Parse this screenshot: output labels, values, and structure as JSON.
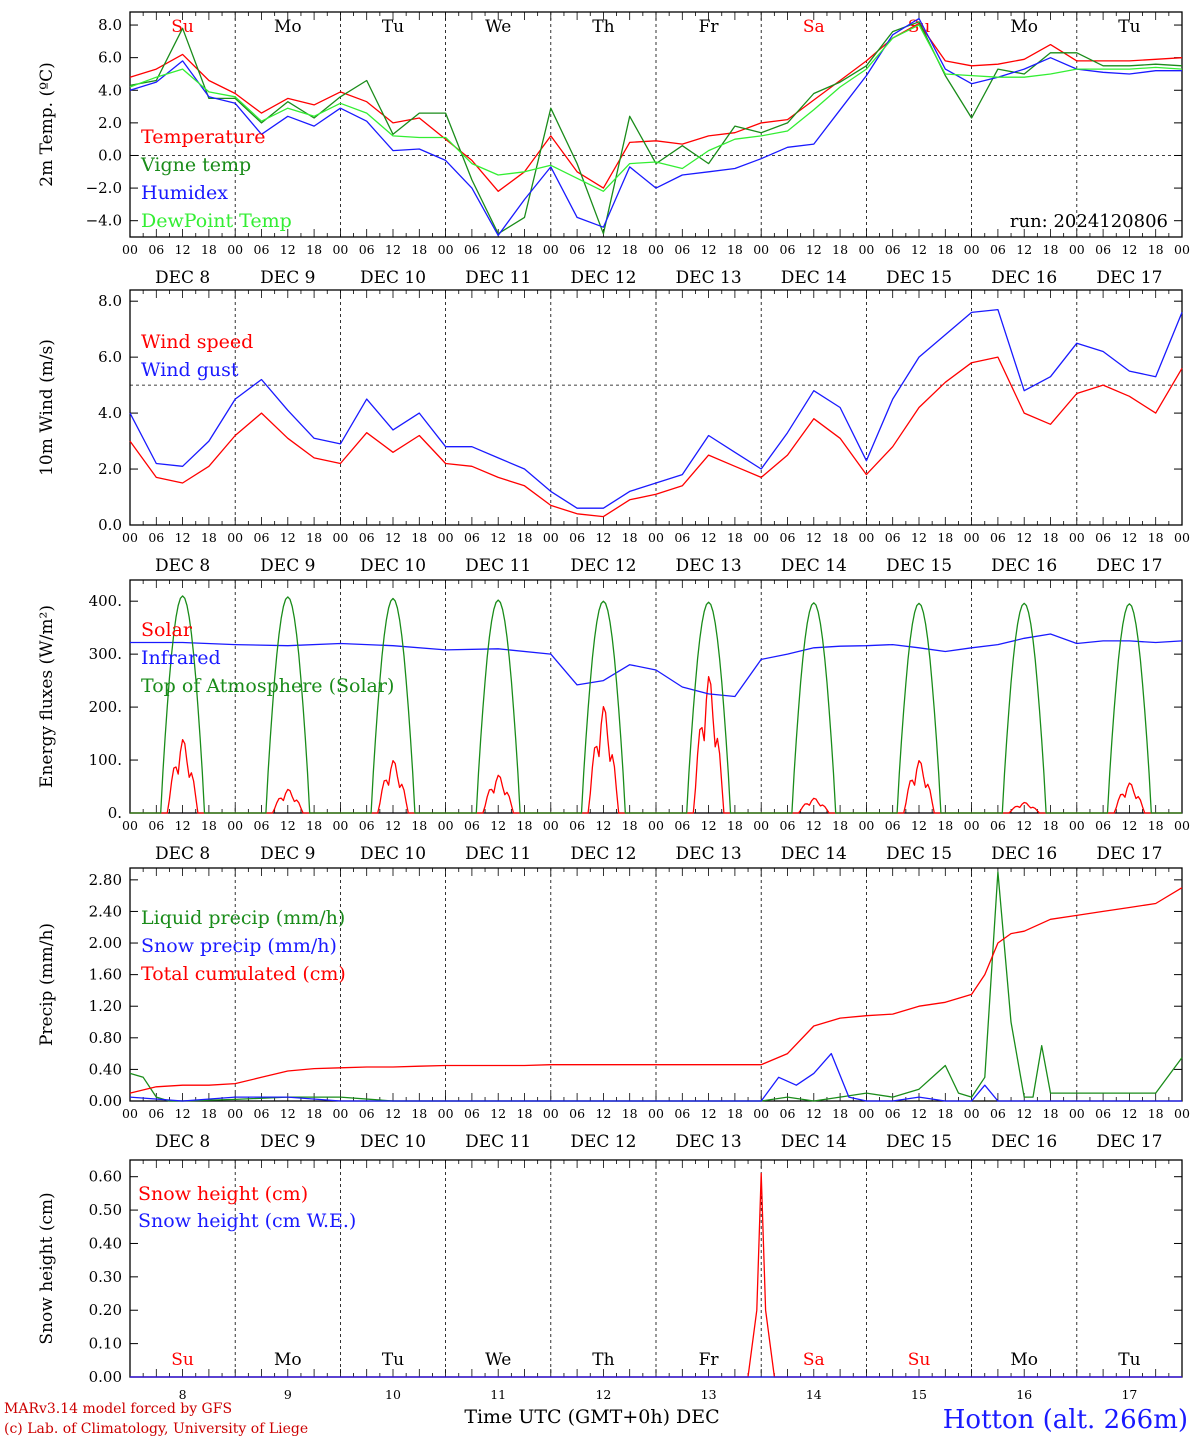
{
  "colors": {
    "red": "#ff0000",
    "green": "#1a8c1a",
    "blue": "#1a1aff",
    "light_green": "#33ee33",
    "black": "#000000"
  },
  "hour_ticks": [
    "00",
    "06",
    "12",
    "18"
  ],
  "day_names": [
    "Su",
    "Mo",
    "Tu",
    "We",
    "Th",
    "Fr",
    "Sa",
    "Su",
    "Mo",
    "Tu"
  ],
  "weekend_days": [
    0,
    6,
    7
  ],
  "dates": [
    "DEC  8",
    "DEC  9",
    "DEC 10",
    "DEC 11",
    "DEC 12",
    "DEC 13",
    "DEC 14",
    "DEC 15",
    "DEC 16",
    "DEC 17"
  ],
  "bottom_day_numbers": [
    "8",
    "9",
    "10",
    "11",
    "12",
    "13",
    "14",
    "15",
    "16",
    "17"
  ],
  "footer": {
    "credit_line1": "MARv3.14 model forced by GFS",
    "credit_line2": "(c) Lab. of Climatology, University of Liege",
    "axis_title": "Time UTC (GMT+0h) DEC",
    "station": "Hotton (alt. 266m)"
  },
  "chart_data": [
    {
      "type": "line",
      "ylabel": "2m Temp. (ºC)",
      "ylim": [
        -5.0,
        8.8
      ],
      "yticks": [
        8.0,
        6.0,
        4.0,
        2.0,
        0.0,
        -2.0,
        -4.0
      ],
      "ytick_labels": [
        "8.0",
        "6.0",
        "4.0",
        "2.0",
        "0.0",
        "−2.0",
        "−4.0"
      ],
      "ref_line": 0.0,
      "run_label": "run: 2024120806",
      "show_day_names": true,
      "x_unit": "hours since DEC 8 00 UTC",
      "series": [
        {
          "name": "Temperature",
          "color": "#ff0000",
          "x": [
            0,
            6,
            12,
            18,
            24,
            30,
            36,
            42,
            48,
            54,
            60,
            66,
            72,
            78,
            84,
            90,
            96,
            102,
            108,
            114,
            120,
            126,
            132,
            138,
            144,
            150,
            156,
            162,
            168,
            174,
            180,
            186,
            192,
            198,
            204,
            210,
            216,
            222,
            228,
            234,
            240
          ],
          "y": [
            4.8,
            5.3,
            6.2,
            4.6,
            3.8,
            2.6,
            3.5,
            3.1,
            3.9,
            3.3,
            2.0,
            2.3,
            1.0,
            -0.3,
            -2.2,
            -1.0,
            1.2,
            -1.0,
            -2.0,
            0.8,
            0.9,
            0.7,
            1.2,
            1.4,
            2.0,
            2.2,
            3.4,
            4.6,
            5.8,
            7.2,
            8.1,
            5.8,
            5.5,
            5.6,
            5.9,
            6.8,
            5.8,
            5.8,
            5.8,
            5.9,
            6.0
          ]
        },
        {
          "name": "Vigne temp",
          "color": "#1a8c1a",
          "x": [
            0,
            6,
            12,
            18,
            24,
            30,
            36,
            42,
            48,
            54,
            60,
            66,
            72,
            78,
            84,
            90,
            96,
            102,
            108,
            114,
            120,
            126,
            132,
            138,
            144,
            150,
            156,
            162,
            168,
            174,
            180,
            186,
            192,
            198,
            204,
            210,
            216,
            222,
            228,
            234,
            240
          ],
          "y": [
            4.3,
            4.6,
            7.8,
            3.5,
            3.5,
            2.0,
            3.3,
            2.3,
            3.6,
            4.6,
            1.3,
            2.6,
            2.6,
            -1.5,
            -4.8,
            -3.8,
            2.9,
            -0.5,
            -4.8,
            2.4,
            -0.5,
            0.6,
            -0.5,
            1.8,
            1.4,
            2.0,
            3.8,
            4.5,
            5.5,
            7.6,
            8.2,
            4.9,
            2.3,
            5.3,
            5.0,
            6.3,
            6.3,
            5.5,
            5.5,
            5.6,
            5.5
          ]
        },
        {
          "name": "Humidex",
          "color": "#1a1aff",
          "x": [
            0,
            6,
            12,
            18,
            24,
            30,
            36,
            42,
            48,
            54,
            60,
            66,
            72,
            78,
            84,
            90,
            96,
            102,
            108,
            114,
            120,
            126,
            132,
            138,
            144,
            150,
            156,
            162,
            168,
            174,
            180,
            186,
            192,
            198,
            204,
            210,
            216,
            222,
            228,
            234,
            240
          ],
          "y": [
            4.0,
            4.5,
            5.8,
            3.6,
            3.2,
            1.3,
            2.4,
            1.8,
            2.9,
            2.1,
            0.3,
            0.4,
            -0.3,
            -2.0,
            -4.9,
            -2.7,
            -0.7,
            -3.8,
            -4.4,
            -0.7,
            -2.0,
            -1.2,
            -1.0,
            -0.8,
            -0.2,
            0.5,
            0.7,
            2.8,
            4.9,
            7.4,
            8.4,
            5.3,
            4.4,
            4.8,
            5.3,
            6.0,
            5.3,
            5.1,
            5.0,
            5.2,
            5.2
          ]
        },
        {
          "name": "DewPoint Temp",
          "color": "#33ee33",
          "x": [
            0,
            6,
            12,
            18,
            24,
            30,
            36,
            42,
            48,
            54,
            60,
            66,
            72,
            78,
            84,
            90,
            96,
            102,
            108,
            114,
            120,
            126,
            132,
            138,
            144,
            150,
            156,
            162,
            168,
            174,
            180,
            186,
            192,
            198,
            204,
            210,
            216,
            222,
            228,
            234,
            240
          ],
          "y": [
            4.2,
            4.8,
            5.3,
            3.9,
            3.6,
            2.1,
            2.9,
            2.4,
            3.2,
            2.6,
            1.2,
            1.1,
            1.1,
            -0.5,
            -1.2,
            -1.0,
            -0.6,
            -1.4,
            -2.2,
            -0.5,
            -0.4,
            -0.8,
            0.3,
            1.0,
            1.2,
            1.5,
            2.8,
            4.2,
            5.3,
            7.2,
            8.0,
            5.0,
            4.9,
            4.8,
            4.8,
            5.0,
            5.3,
            5.3,
            5.3,
            5.4,
            5.3
          ]
        }
      ]
    },
    {
      "type": "line",
      "ylabel": "10m Wind (m/s)",
      "ylim": [
        0.0,
        8.4
      ],
      "yticks": [
        8.0,
        6.0,
        4.0,
        2.0,
        0.0
      ],
      "ytick_labels": [
        "8.0",
        "6.0",
        "4.0",
        "2.0",
        "0.0"
      ],
      "ref_line": 5.0,
      "show_day_names": false,
      "x_unit": "hours since DEC 8 00 UTC",
      "series": [
        {
          "name": "Wind speed",
          "color": "#ff0000",
          "x": [
            0,
            6,
            12,
            18,
            24,
            30,
            36,
            42,
            48,
            54,
            60,
            66,
            72,
            78,
            84,
            90,
            96,
            102,
            108,
            114,
            120,
            126,
            132,
            138,
            144,
            150,
            156,
            162,
            168,
            174,
            180,
            186,
            192,
            198,
            204,
            210,
            216,
            222,
            228,
            234,
            240
          ],
          "y": [
            3.0,
            1.7,
            1.5,
            2.1,
            3.2,
            4.0,
            3.1,
            2.4,
            2.2,
            3.3,
            2.6,
            3.2,
            2.2,
            2.1,
            1.7,
            1.4,
            0.7,
            0.4,
            0.3,
            0.9,
            1.1,
            1.4,
            2.5,
            2.1,
            1.7,
            2.5,
            3.8,
            3.1,
            1.8,
            2.8,
            4.2,
            5.1,
            5.8,
            6.0,
            4.0,
            3.6,
            4.7,
            5.0,
            4.6,
            4.0,
            5.6
          ]
        },
        {
          "name": "Wind gust",
          "color": "#1a1aff",
          "x": [
            0,
            6,
            12,
            18,
            24,
            30,
            36,
            42,
            48,
            54,
            60,
            66,
            72,
            78,
            84,
            90,
            96,
            102,
            108,
            114,
            120,
            126,
            132,
            138,
            144,
            150,
            156,
            162,
            168,
            174,
            180,
            186,
            192,
            198,
            204,
            210,
            216,
            222,
            228,
            234,
            240
          ],
          "y": [
            4.0,
            2.2,
            2.1,
            3.0,
            4.5,
            5.2,
            4.1,
            3.1,
            2.9,
            4.5,
            3.4,
            4.0,
            2.8,
            2.8,
            2.4,
            2.0,
            1.2,
            0.6,
            0.6,
            1.2,
            1.5,
            1.8,
            3.2,
            2.6,
            2.0,
            3.3,
            4.8,
            4.2,
            2.3,
            4.5,
            6.0,
            6.8,
            7.6,
            7.7,
            4.8,
            5.3,
            6.5,
            6.2,
            5.5,
            5.3,
            7.6
          ]
        }
      ]
    },
    {
      "type": "line",
      "ylabel": "Energy fluxes (W/m²)",
      "ylim": [
        0,
        440
      ],
      "yticks": [
        400,
        300,
        200,
        100,
        0
      ],
      "ytick_labels": [
        "400.",
        "300.",
        "200.",
        "100.",
        "0."
      ],
      "show_day_names": false,
      "x_unit": "hours since DEC 8 00 UTC",
      "series": [
        {
          "name": "Solar",
          "color": "#ff0000",
          "daily_peaks": [
            140,
            45,
            100,
            72,
            203,
            260,
            28,
            100,
            20,
            57
          ]
        },
        {
          "name": "Infrared",
          "color": "#1a1aff",
          "x": [
            0,
            12,
            24,
            36,
            48,
            60,
            72,
            84,
            96,
            102,
            108,
            114,
            120,
            126,
            132,
            138,
            144,
            150,
            156,
            162,
            168,
            174,
            180,
            186,
            192,
            198,
            204,
            210,
            216,
            222,
            228,
            234,
            240
          ],
          "y": [
            322,
            322,
            318,
            316,
            320,
            316,
            308,
            310,
            300,
            242,
            250,
            280,
            270,
            238,
            225,
            220,
            290,
            300,
            312,
            315,
            316,
            318,
            312,
            305,
            312,
            318,
            330,
            338,
            320,
            325,
            325,
            322,
            325
          ]
        },
        {
          "name": "Top of Atmosphere (Solar)",
          "color": "#1a8c1a",
          "daily_peaks": [
            410,
            408,
            405,
            402,
            400,
            398,
            397,
            396,
            396,
            395
          ]
        }
      ]
    },
    {
      "type": "line",
      "ylabel": "Precip (mm/h)",
      "ylim": [
        0.0,
        2.95
      ],
      "yticks": [
        2.8,
        2.4,
        2.0,
        1.6,
        1.2,
        0.8,
        0.4,
        0.0
      ],
      "ytick_labels": [
        "2.80",
        "2.40",
        "2.00",
        "1.60",
        "1.20",
        "0.80",
        "0.40",
        "0.00"
      ],
      "show_day_names": false,
      "x_unit": "hours since DEC 8 00 UTC",
      "series": [
        {
          "name": "Liquid precip (mm/h)",
          "color": "#1a8c1a",
          "x": [
            0,
            3,
            6,
            9,
            12,
            24,
            36,
            48,
            60,
            84,
            144,
            150,
            156,
            162,
            168,
            174,
            180,
            186,
            189,
            192,
            195,
            198,
            201,
            204,
            206,
            208,
            210,
            216,
            222,
            228,
            234,
            240
          ],
          "y": [
            0.35,
            0.3,
            0.05,
            0.0,
            0.0,
            0.02,
            0.05,
            0.05,
            0.0,
            0.0,
            0.0,
            0.05,
            0.0,
            0.05,
            0.1,
            0.05,
            0.15,
            0.45,
            0.1,
            0.05,
            0.3,
            2.9,
            1.0,
            0.05,
            0.05,
            0.7,
            0.1,
            0.1,
            0.1,
            0.1,
            0.1,
            0.55
          ]
        },
        {
          "name": "Snow precip (mm/h)",
          "color": "#1a1aff",
          "x": [
            0,
            12,
            24,
            36,
            48,
            60,
            144,
            148,
            152,
            156,
            160,
            164,
            168,
            174,
            180,
            186,
            192,
            195,
            198,
            204,
            216,
            228,
            240
          ],
          "y": [
            0.05,
            0.0,
            0.05,
            0.05,
            0.0,
            0.0,
            0.0,
            0.3,
            0.2,
            0.35,
            0.6,
            0.05,
            0.0,
            0.0,
            0.05,
            0.0,
            0.0,
            0.2,
            0.0,
            0.0,
            0.0,
            0.0,
            0.0
          ]
        },
        {
          "name": "Total cumulated (cm)",
          "color": "#ff0000",
          "x": [
            0,
            6,
            12,
            18,
            24,
            30,
            36,
            42,
            48,
            54,
            60,
            66,
            72,
            78,
            84,
            90,
            96,
            102,
            108,
            114,
            120,
            126,
            132,
            138,
            144,
            150,
            156,
            162,
            168,
            174,
            180,
            186,
            192,
            195,
            198,
            201,
            204,
            210,
            216,
            222,
            228,
            234,
            240
          ],
          "y": [
            0.1,
            0.18,
            0.2,
            0.2,
            0.22,
            0.3,
            0.38,
            0.41,
            0.42,
            0.43,
            0.43,
            0.44,
            0.45,
            0.45,
            0.45,
            0.45,
            0.46,
            0.46,
            0.46,
            0.46,
            0.46,
            0.46,
            0.46,
            0.46,
            0.46,
            0.6,
            0.95,
            1.05,
            1.08,
            1.1,
            1.2,
            1.25,
            1.35,
            1.6,
            2.0,
            2.12,
            2.15,
            2.3,
            2.35,
            2.4,
            2.45,
            2.5,
            2.7
          ]
        }
      ]
    },
    {
      "type": "line",
      "ylabel": "Snow height (cm)",
      "ylim": [
        0.0,
        0.65
      ],
      "yticks": [
        0.6,
        0.5,
        0.4,
        0.3,
        0.2,
        0.1,
        0.0
      ],
      "ytick_labels": [
        "0.60",
        "0.50",
        "0.40",
        "0.30",
        "0.20",
        "0.10",
        "0.00"
      ],
      "show_day_names_bottom": true,
      "x_unit": "hours since DEC 8 00 UTC",
      "series": [
        {
          "name": "Snow height (cm)",
          "color": "#ff0000",
          "x": [
            0,
            141,
            143,
            144,
            145,
            147,
            240
          ],
          "y": [
            0,
            0,
            0.2,
            0.61,
            0.2,
            0,
            0
          ]
        },
        {
          "name": "Snow height (cm W.E.)",
          "color": "#1a1aff",
          "x": [
            0,
            240
          ],
          "y": [
            0,
            0
          ]
        }
      ]
    }
  ]
}
